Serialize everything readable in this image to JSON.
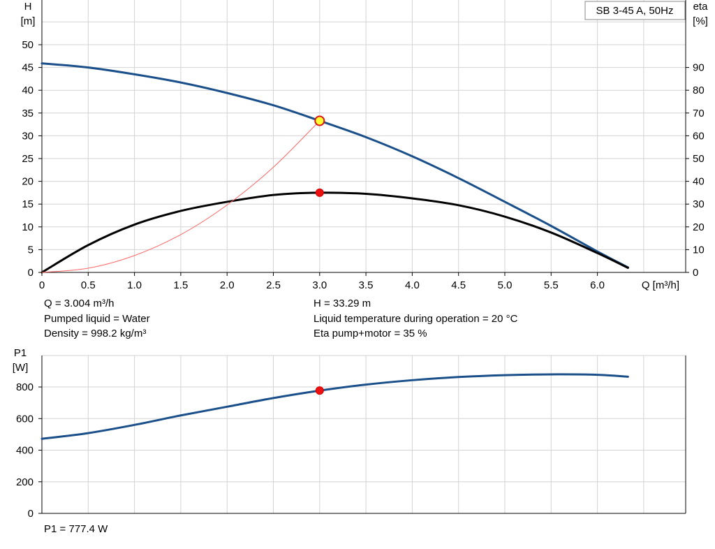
{
  "chart_data": [
    {
      "type": "line",
      "title": "SB 3-45 A, 50Hz",
      "xlabel": "Q [m³/h]",
      "ylabel_left": [
        "H",
        "[m]"
      ],
      "ylabel_right": [
        "eta",
        "[%]"
      ],
      "xlim": [
        0,
        6.95
      ],
      "ylim_left": [
        0,
        60
      ],
      "ylim_right": [
        0,
        120
      ],
      "xticks": [
        0,
        0.5,
        1.0,
        1.5,
        2.0,
        2.5,
        3.0,
        3.5,
        4.0,
        4.5,
        5.0,
        5.5,
        6.0
      ],
      "xtick_labels": [
        "0",
        "0.5",
        "1.0",
        "1.5",
        "2.0",
        "2.5",
        "3.0",
        "3.5",
        "4.0",
        "4.5",
        "5.0",
        "5.5",
        "6.0"
      ],
      "yticks_left": [
        0,
        5,
        10,
        15,
        20,
        25,
        30,
        35,
        40,
        45,
        50
      ],
      "yticks_right": [
        0,
        10,
        20,
        30,
        40,
        50,
        60,
        70,
        80,
        90
      ],
      "grid": true,
      "series": [
        {
          "axis": "left",
          "color": "#1a4f8a",
          "x": [
            0,
            0.5,
            1.0,
            1.5,
            2.0,
            2.5,
            3.0,
            3.5,
            4.0,
            4.5,
            5.0,
            5.5,
            6.0,
            6.33
          ],
          "y": [
            45.9,
            45.0,
            43.5,
            41.7,
            39.4,
            36.7,
            33.3,
            29.7,
            25.5,
            20.7,
            15.5,
            10.2,
            4.6,
            1.1
          ]
        },
        {
          "axis": "right",
          "color": "#000000",
          "x": [
            0,
            0.5,
            1.0,
            1.5,
            2.0,
            2.5,
            3.0,
            3.5,
            4.0,
            4.5,
            5.0,
            5.5,
            6.0,
            6.33
          ],
          "y": [
            0,
            12,
            21,
            27,
            31,
            34,
            35,
            34.5,
            32.5,
            29.5,
            24.5,
            17.5,
            8.5,
            2
          ]
        },
        {
          "axis": "left",
          "color": "#ff6666",
          "x": [
            0,
            0.5,
            1.0,
            1.5,
            2.0,
            2.5,
            3.0
          ],
          "y": [
            0,
            0.92,
            3.7,
            8.3,
            14.8,
            23.1,
            33.3
          ]
        }
      ],
      "duty_point_h": {
        "x": 3.0,
        "y": 33.29
      },
      "duty_point_eta": {
        "x": 3.0,
        "y": 35
      }
    },
    {
      "type": "line",
      "ylabel": [
        "P1",
        "[W]"
      ],
      "xlim": [
        0,
        6.95
      ],
      "ylim": [
        0,
        1000
      ],
      "yticks": [
        0,
        200,
        400,
        600,
        800
      ],
      "grid": true,
      "series": [
        {
          "color": "#1a4f8a",
          "x": [
            0,
            0.5,
            1.0,
            1.5,
            2.0,
            2.5,
            3.0,
            3.5,
            4.0,
            4.5,
            5.0,
            5.5,
            6.0,
            6.33
          ],
          "y": [
            472,
            508,
            560,
            620,
            675,
            730,
            777,
            815,
            843,
            863,
            875,
            880,
            877,
            865
          ]
        }
      ],
      "duty_point": {
        "x": 3.0,
        "y": 777.4
      }
    }
  ],
  "info": {
    "q": "Q = 3.004 m³/h",
    "pumped_liquid": "Pumped liquid = Water",
    "density": "Density = 998.2 kg/m³",
    "h": "H = 33.29 m",
    "liquid_temp": "Liquid temperature during operation = 20 °C",
    "eta_pump_motor": "Eta pump+motor = 35 %",
    "p1": "P1 = 777.4 W"
  }
}
